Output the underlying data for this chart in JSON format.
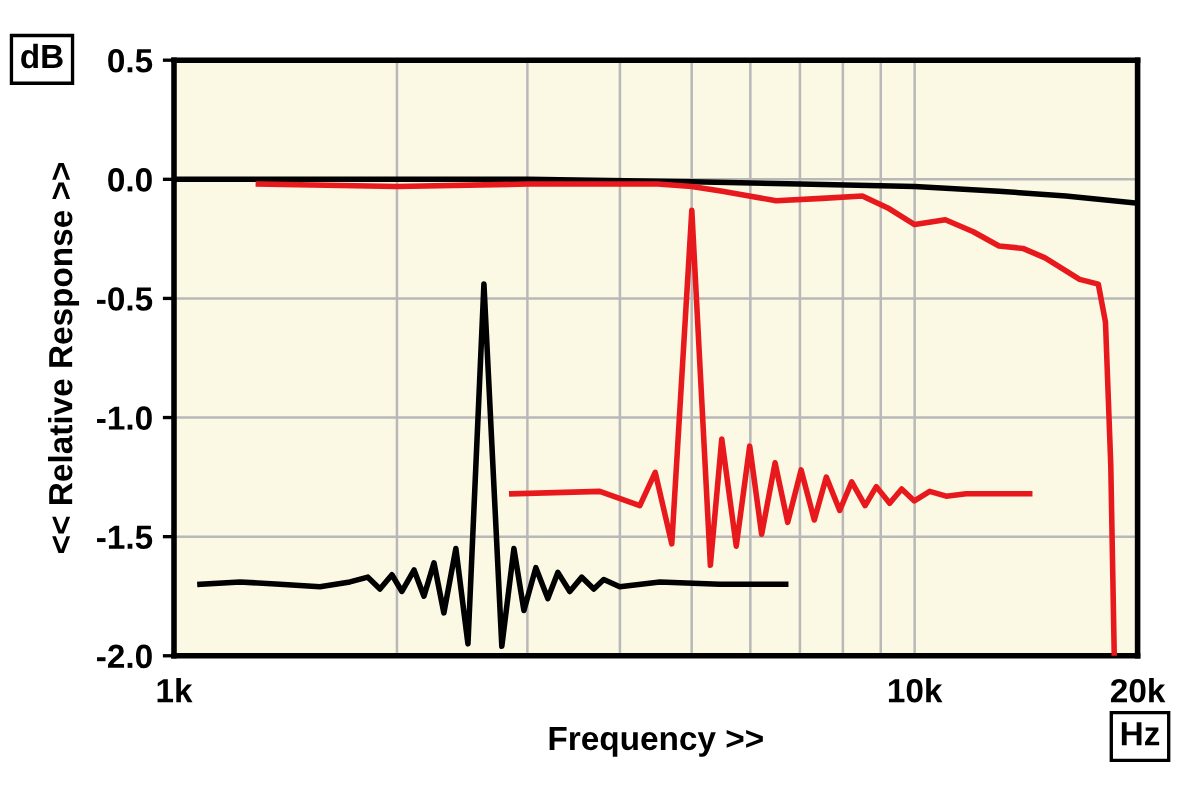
{
  "chart_data": {
    "type": "line",
    "xlabel": "Frequency >>",
    "ylabel": "<< Relative Response >>",
    "annotations": [
      "dB",
      "Hz"
    ],
    "log": "x",
    "grid": true,
    "marker": "none",
    "line_style": "solid",
    "xlim": [
      1000,
      20000
    ],
    "xticks": [
      {
        "value": 1000,
        "label": "1k"
      },
      {
        "value": 2000,
        "label": null
      },
      {
        "value": 3000,
        "label": null
      },
      {
        "value": 4000,
        "label": null
      },
      {
        "value": 5000,
        "label": null
      },
      {
        "value": 6000,
        "label": null
      },
      {
        "value": 7000,
        "label": null
      },
      {
        "value": 8000,
        "label": null
      },
      {
        "value": 9000,
        "label": null
      },
      {
        "value": 10000,
        "label": "10k"
      },
      {
        "value": 20000,
        "label": "20k"
      }
    ],
    "ylim": [
      -2.0,
      0.5
    ],
    "yticks": [
      {
        "value": 0.5,
        "label": "0.5"
      },
      {
        "value": 0,
        "label": "0.0"
      },
      {
        "value": -0.5,
        "label": "-0.5"
      },
      {
        "value": -1.0,
        "label": "-1.0"
      },
      {
        "value": -1.5,
        "label": "-1.5"
      },
      {
        "value": -2.0,
        "label": "-2.0"
      }
    ],
    "series": [
      {
        "color": "#000000",
        "x": [
          1000,
          3000,
          5000,
          7000,
          10000,
          13000,
          16000,
          20000
        ],
        "values": [
          0,
          0,
          -0.01,
          -0.02,
          -0.03,
          -0.05,
          -0.07,
          -0.1
        ]
      },
      {
        "color": "#e8191c",
        "x": [
          1300,
          2000,
          3000,
          4500,
          5000,
          5500,
          6500,
          7500,
          8500,
          9200,
          10000,
          11000,
          12000,
          13000,
          14000,
          15000,
          16700,
          17700,
          18100,
          18400,
          18600
        ],
        "values": [
          -0.02,
          -0.03,
          -0.02,
          -0.02,
          -0.03,
          -0.05,
          -0.09,
          -0.08,
          -0.07,
          -0.12,
          -0.19,
          -0.17,
          -0.22,
          -0.28,
          -0.29,
          -0.33,
          -0.42,
          -0.44,
          -0.6,
          -1.2,
          -2.0
        ]
      },
      {
        "color": "#000000",
        "x": [
          1084,
          1228,
          1390,
          1574,
          1728,
          1827,
          1897,
          1969,
          2031,
          2109,
          2175,
          2244,
          2314,
          2402,
          2494,
          2621,
          2771,
          2877,
          2968,
          3080,
          3197,
          3298,
          3423,
          3553,
          3688,
          3804,
          3998,
          4529,
          5456,
          6697
        ],
        "values": [
          -1.7,
          -1.69,
          -1.7,
          -1.71,
          -1.69,
          -1.67,
          -1.72,
          -1.66,
          -1.73,
          -1.64,
          -1.75,
          -1.61,
          -1.82,
          -1.55,
          -1.95,
          -0.44,
          -1.96,
          -1.55,
          -1.81,
          -1.63,
          -1.76,
          -1.65,
          -1.73,
          -1.67,
          -1.72,
          -1.68,
          -1.71,
          -1.69,
          -1.7,
          -1.7
        ]
      },
      {
        "color": "#e8191c",
        "x": [
          2858,
          3757,
          4256,
          4464,
          4700,
          5002,
          5299,
          5490,
          5743,
          5988,
          6215,
          6480,
          6739,
          7026,
          7320,
          7599,
          7922,
          8222,
          8573,
          8876,
          9253,
          9605,
          9990,
          10480,
          11030,
          11740,
          14300
        ],
        "values": [
          -1.32,
          -1.31,
          -1.37,
          -1.23,
          -1.53,
          -0.13,
          -1.62,
          -1.09,
          -1.54,
          -1.12,
          -1.49,
          -1.19,
          -1.44,
          -1.22,
          -1.43,
          -1.25,
          -1.39,
          -1.27,
          -1.37,
          -1.29,
          -1.36,
          -1.3,
          -1.35,
          -1.31,
          -1.33,
          -1.32,
          -1.32
        ]
      }
    ]
  }
}
